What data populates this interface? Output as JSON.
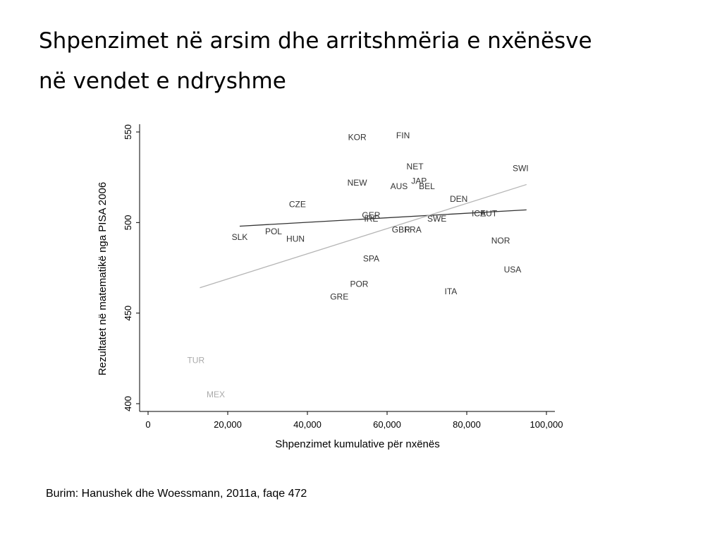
{
  "slide": {
    "title_line1": "Shpenzimet në arsim dhe arritshmëria e nxënësve",
    "title_line2": "në vendet e ndryshme",
    "source_note": "Burim: Hanushek dhe Woessmann, 2011a, faqe 472"
  },
  "chart_data": {
    "type": "scatter",
    "xlabel": "Shpenzimet kumulative për nxënës",
    "ylabel": "Rezultatet në matematikë nga PISA 2006",
    "xlim": [
      0,
      100000
    ],
    "ylim": [
      400,
      550
    ],
    "x_ticks": [
      0,
      20000,
      40000,
      60000,
      80000,
      100000
    ],
    "x_tick_labels": [
      "0",
      "20,000",
      "40,000",
      "60,000",
      "80,000",
      "100,000"
    ],
    "y_ticks": [
      400,
      450,
      500,
      550
    ],
    "y_tick_labels": [
      "400",
      "450",
      "500",
      "550"
    ],
    "grid": false,
    "colors": {
      "main_points": "#333333",
      "outlier_points": "#aaaaaa",
      "fit_excluding_outliers": "#333333",
      "fit_all_countries": "#b5b5b5",
      "axis": "#000000"
    },
    "points": [
      {
        "label": "KOR",
        "x": 52500,
        "y": 547,
        "group": "main"
      },
      {
        "label": "FIN",
        "x": 64000,
        "y": 548,
        "group": "main"
      },
      {
        "label": "NET",
        "x": 67000,
        "y": 531,
        "group": "main"
      },
      {
        "label": "SWI",
        "x": 93500,
        "y": 530,
        "group": "main"
      },
      {
        "label": "NEW",
        "x": 52500,
        "y": 522,
        "group": "main"
      },
      {
        "label": "JAP",
        "x": 68000,
        "y": 523,
        "group": "main"
      },
      {
        "label": "AUS",
        "x": 63000,
        "y": 520,
        "group": "main"
      },
      {
        "label": "BEL",
        "x": 70000,
        "y": 520,
        "group": "main"
      },
      {
        "label": "CZE",
        "x": 37500,
        "y": 510,
        "group": "main"
      },
      {
        "label": "DEN",
        "x": 78000,
        "y": 513,
        "group": "main"
      },
      {
        "label": "GER",
        "x": 56000,
        "y": 504,
        "group": "main"
      },
      {
        "label": "IRE",
        "x": 56000,
        "y": 502,
        "group": "main"
      },
      {
        "label": "ICE",
        "x": 83000,
        "y": 505,
        "group": "main"
      },
      {
        "label": "AUT",
        "x": 85500,
        "y": 505,
        "group": "main"
      },
      {
        "label": "SWE",
        "x": 72500,
        "y": 502,
        "group": "main"
      },
      {
        "label": "GBR",
        "x": 63500,
        "y": 496,
        "group": "main"
      },
      {
        "label": "FRA",
        "x": 66500,
        "y": 496,
        "group": "main"
      },
      {
        "label": "SLK",
        "x": 23000,
        "y": 492,
        "group": "main"
      },
      {
        "label": "POL",
        "x": 31500,
        "y": 495,
        "group": "main"
      },
      {
        "label": "HUN",
        "x": 37000,
        "y": 491,
        "group": "main"
      },
      {
        "label": "NOR",
        "x": 88500,
        "y": 490,
        "group": "main"
      },
      {
        "label": "SPA",
        "x": 56000,
        "y": 480,
        "group": "main"
      },
      {
        "label": "USA",
        "x": 91500,
        "y": 474,
        "group": "main"
      },
      {
        "label": "POR",
        "x": 53000,
        "y": 466,
        "group": "main"
      },
      {
        "label": "ITA",
        "x": 76000,
        "y": 462,
        "group": "main"
      },
      {
        "label": "GRE",
        "x": 48000,
        "y": 459,
        "group": "main"
      },
      {
        "label": "TUR",
        "x": 12000,
        "y": 424,
        "group": "outlier"
      },
      {
        "label": "MEX",
        "x": 17000,
        "y": 405,
        "group": "outlier"
      }
    ],
    "fit_lines": [
      {
        "x": [
          23000,
          95000
        ],
        "y": [
          498,
          507
        ],
        "color": "#333333"
      },
      {
        "x": [
          13000,
          95000
        ],
        "y": [
          464,
          521
        ],
        "color": "#b5b5b5"
      }
    ]
  }
}
